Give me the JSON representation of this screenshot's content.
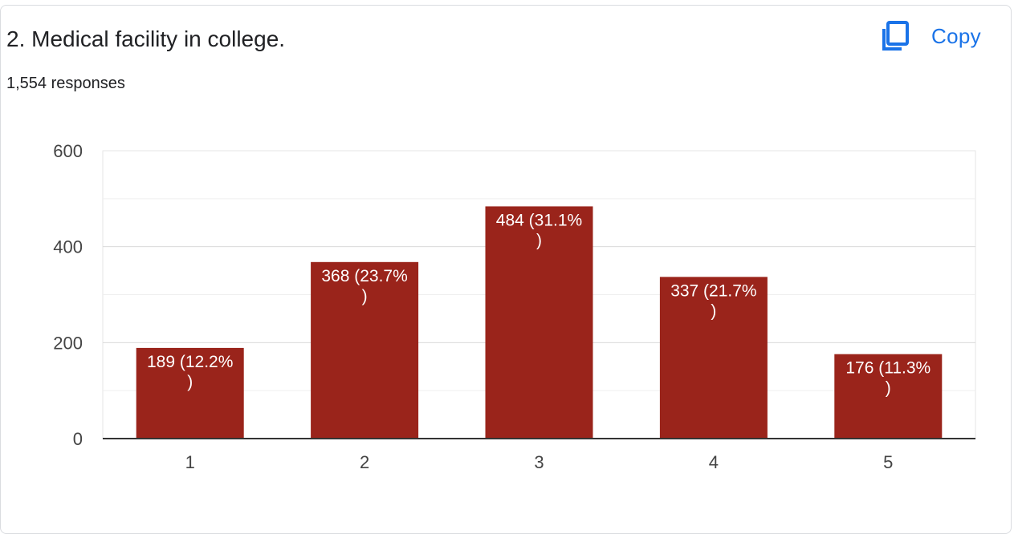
{
  "header": {
    "title": "2. Medical facility in college.",
    "responses": "1,554 responses",
    "copy_label": "Copy",
    "copy_icon": "copy-icon"
  },
  "colors": {
    "bar": "#9a241b",
    "accent": "#1a73e8",
    "grid": "#e6e6e6",
    "axis": "#333333"
  },
  "chart_data": {
    "type": "bar",
    "categories": [
      "1",
      "2",
      "3",
      "4",
      "5"
    ],
    "values": [
      189,
      368,
      484,
      337,
      176
    ],
    "data_labels": [
      "189 (12.2%)",
      "368 (23.7%)",
      "484 (31.1%)",
      "337 (21.7%)",
      "176 (11.3%)"
    ],
    "title": "",
    "xlabel": "",
    "ylabel": "",
    "ylim": [
      0,
      600
    ],
    "yticks": [
      "0",
      "200",
      "400",
      "600"
    ],
    "grid": true,
    "legend": "none"
  }
}
